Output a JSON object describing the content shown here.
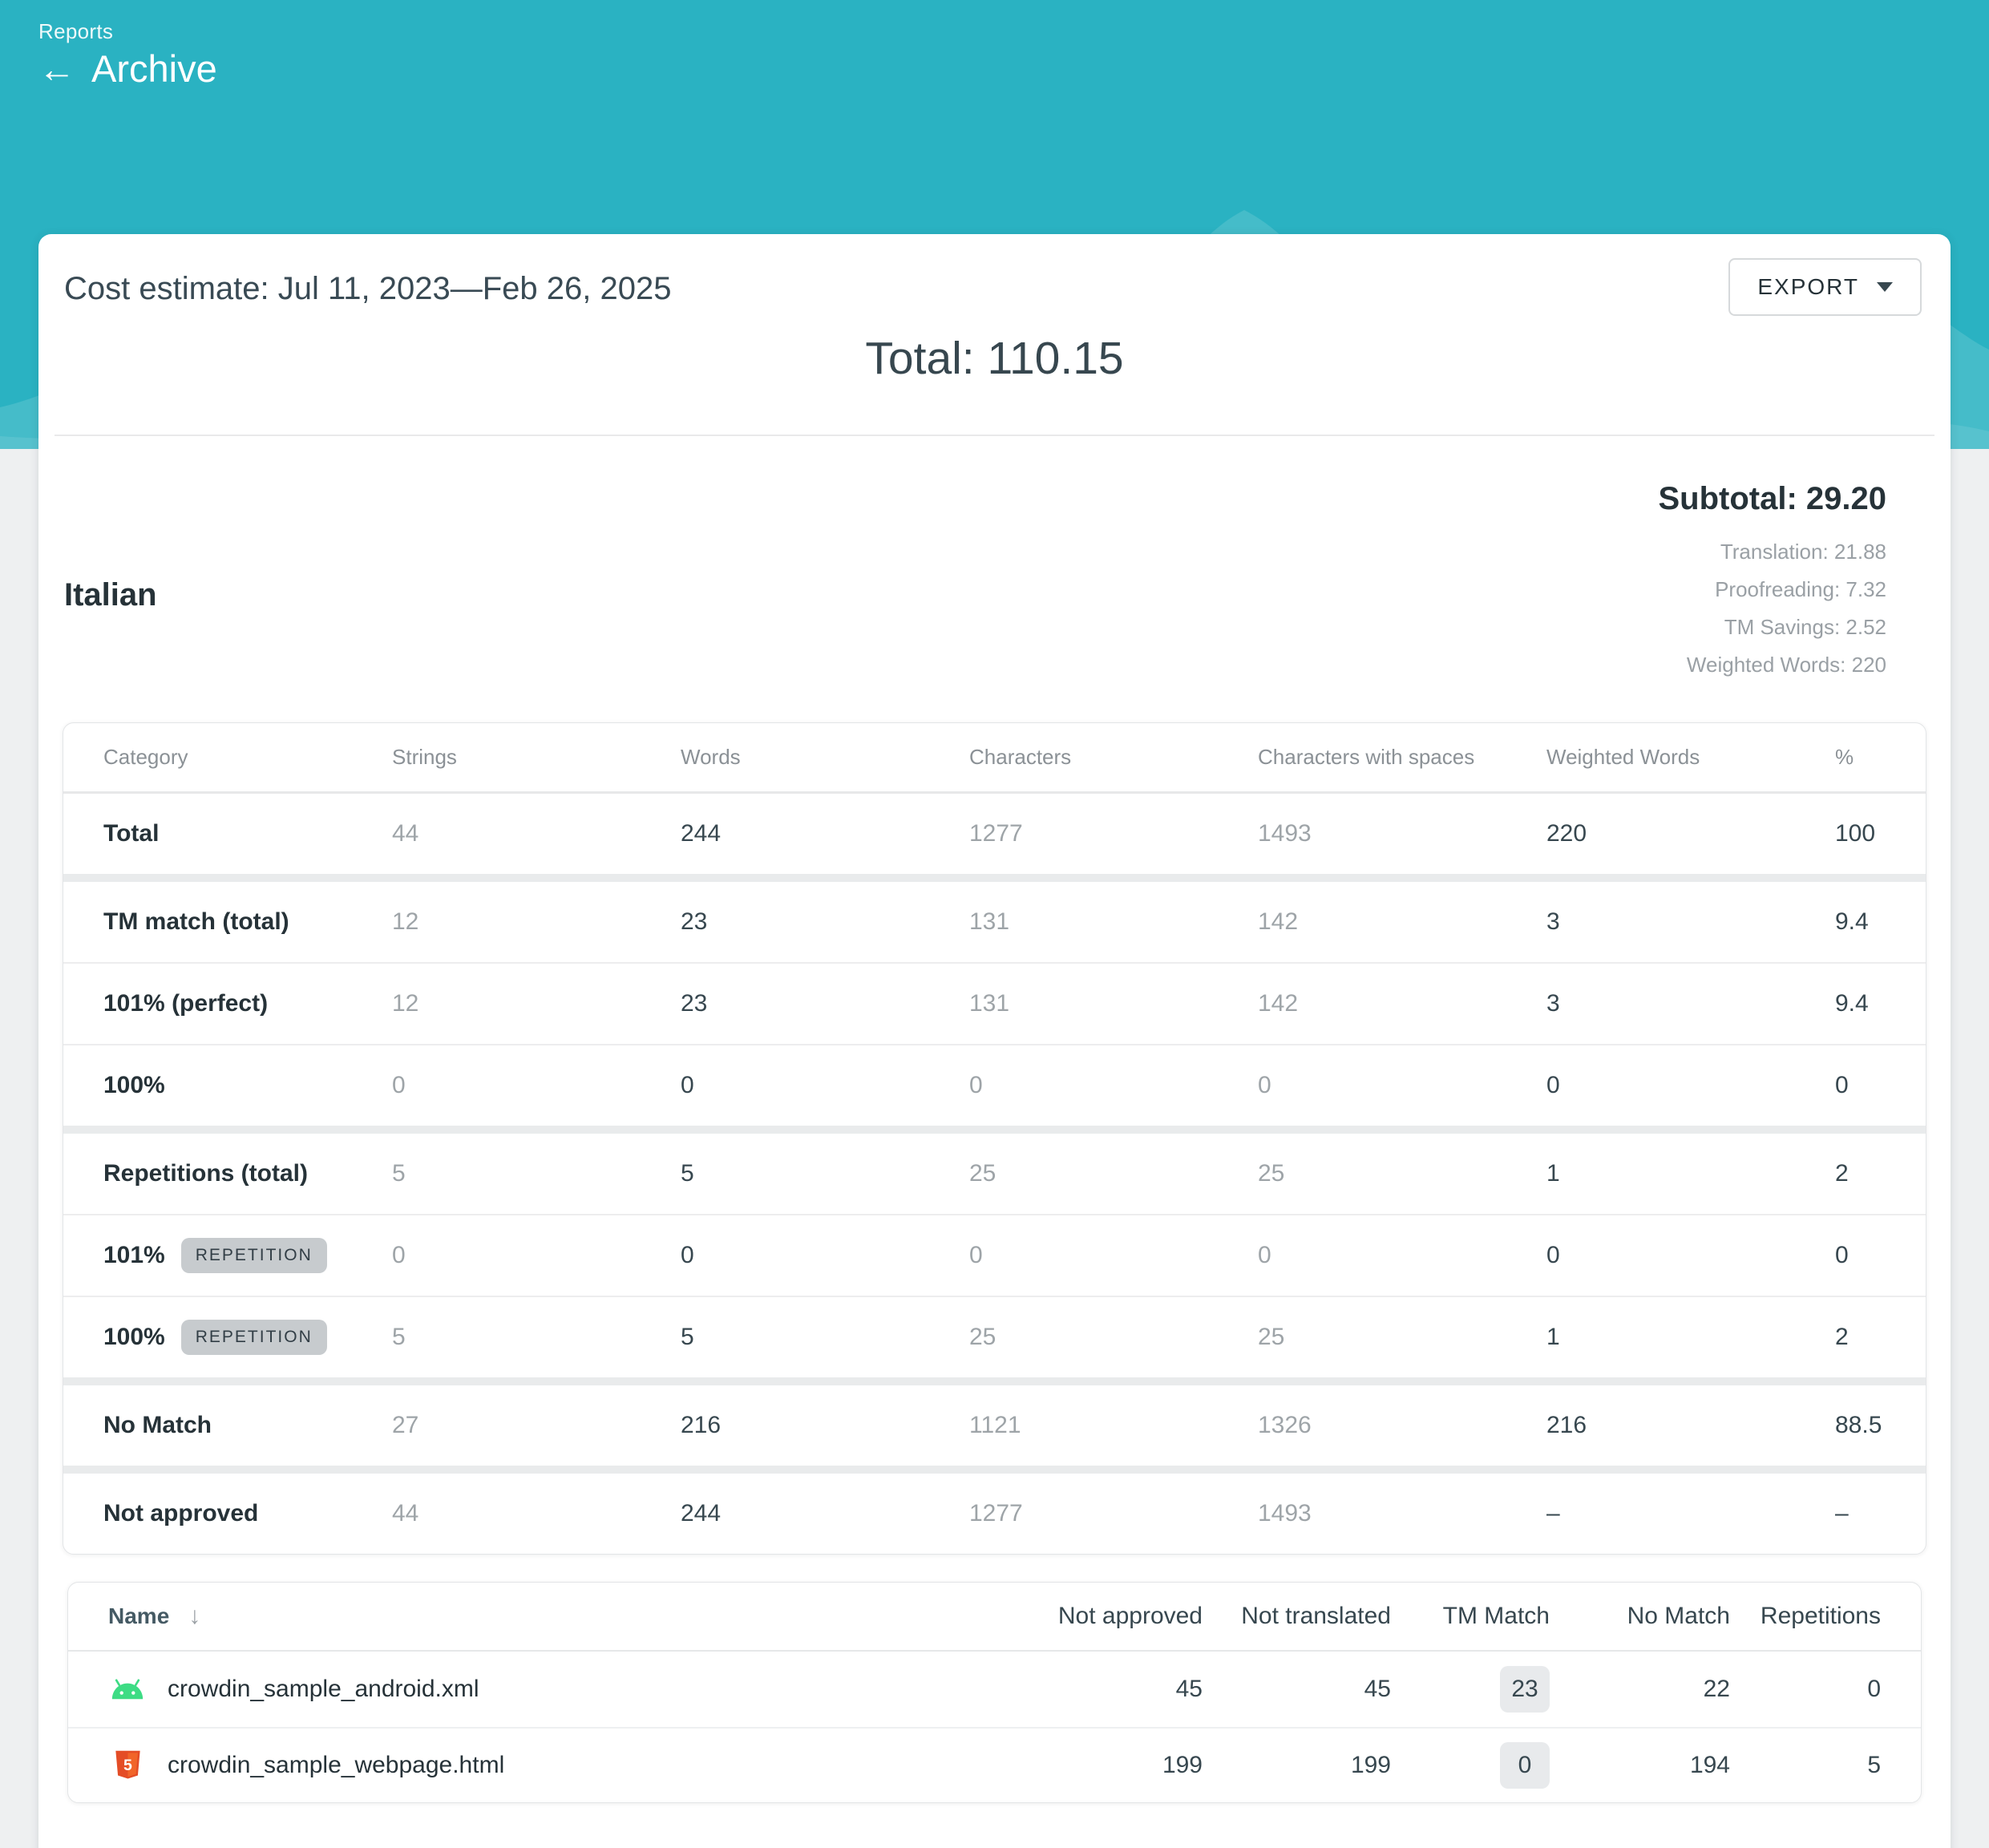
{
  "hero": {
    "breadcrumb": "Reports",
    "title": "Archive",
    "back_arrow": "←"
  },
  "toolbar": {
    "report_title": "Cost estimate: Jul 11, 2023—Feb 26, 2025",
    "export_label": "EXPORT"
  },
  "grand_total": "Total: 110.15",
  "language": {
    "name": "Italian",
    "subtotal": "Subtotal: 29.20",
    "breakdown": [
      "Translation: 21.88",
      "Proofreading: 7.32",
      "TM Savings: 2.52",
      "Weighted Words: 220"
    ]
  },
  "cost_table": {
    "columns": [
      "Category",
      "Strings",
      "Words",
      "Characters",
      "Characters with spaces",
      "Weighted Words",
      "%"
    ],
    "muted_value_columns": [
      0,
      2,
      3
    ],
    "rows": [
      {
        "category": "Total",
        "badge": "",
        "sep": "none",
        "values": [
          "44",
          "244",
          "1277",
          "1493",
          "220",
          "100"
        ]
      },
      {
        "category": "TM match (total)",
        "badge": "",
        "sep": "thick",
        "values": [
          "12",
          "23",
          "131",
          "142",
          "3",
          "9.4"
        ]
      },
      {
        "category": "101% (perfect)",
        "badge": "",
        "sep": "thin",
        "values": [
          "12",
          "23",
          "131",
          "142",
          "3",
          "9.4"
        ]
      },
      {
        "category": "100%",
        "badge": "",
        "sep": "thin",
        "values": [
          "0",
          "0",
          "0",
          "0",
          "0",
          "0"
        ]
      },
      {
        "category": "Repetitions (total)",
        "badge": "",
        "sep": "thick",
        "values": [
          "5",
          "5",
          "25",
          "25",
          "1",
          "2"
        ]
      },
      {
        "category": "101%",
        "badge": "REPETITION",
        "sep": "thin",
        "values": [
          "0",
          "0",
          "0",
          "0",
          "0",
          "0"
        ]
      },
      {
        "category": "100%",
        "badge": "REPETITION",
        "sep": "thin",
        "values": [
          "5",
          "5",
          "25",
          "25",
          "1",
          "2"
        ]
      },
      {
        "category": "No Match",
        "badge": "",
        "sep": "thick",
        "values": [
          "27",
          "216",
          "1121",
          "1326",
          "216",
          "88.5"
        ]
      },
      {
        "category": "Not approved",
        "badge": "",
        "sep": "thick",
        "values": [
          "44",
          "244",
          "1277",
          "1493",
          "–",
          "–"
        ]
      }
    ]
  },
  "files_table": {
    "columns": [
      "Name",
      "Not approved",
      "Not translated",
      "TM Match",
      "No Match",
      "Repetitions"
    ],
    "sort_icon": "↓",
    "highlight_column": 2,
    "rows": [
      {
        "icon": "android-icon",
        "name": "crowdin_sample_android.xml",
        "values": [
          "45",
          "45",
          "23",
          "22",
          "0"
        ]
      },
      {
        "icon": "html5-icon",
        "name": "crowdin_sample_webpage.html",
        "values": [
          "199",
          "199",
          "0",
          "194",
          "5"
        ]
      }
    ]
  },
  "colors": {
    "accent_teal": "#2ab2c2",
    "android_green": "#3ddc84",
    "html5_orange": "#e44d26",
    "html5_orange_light": "#f16529"
  }
}
